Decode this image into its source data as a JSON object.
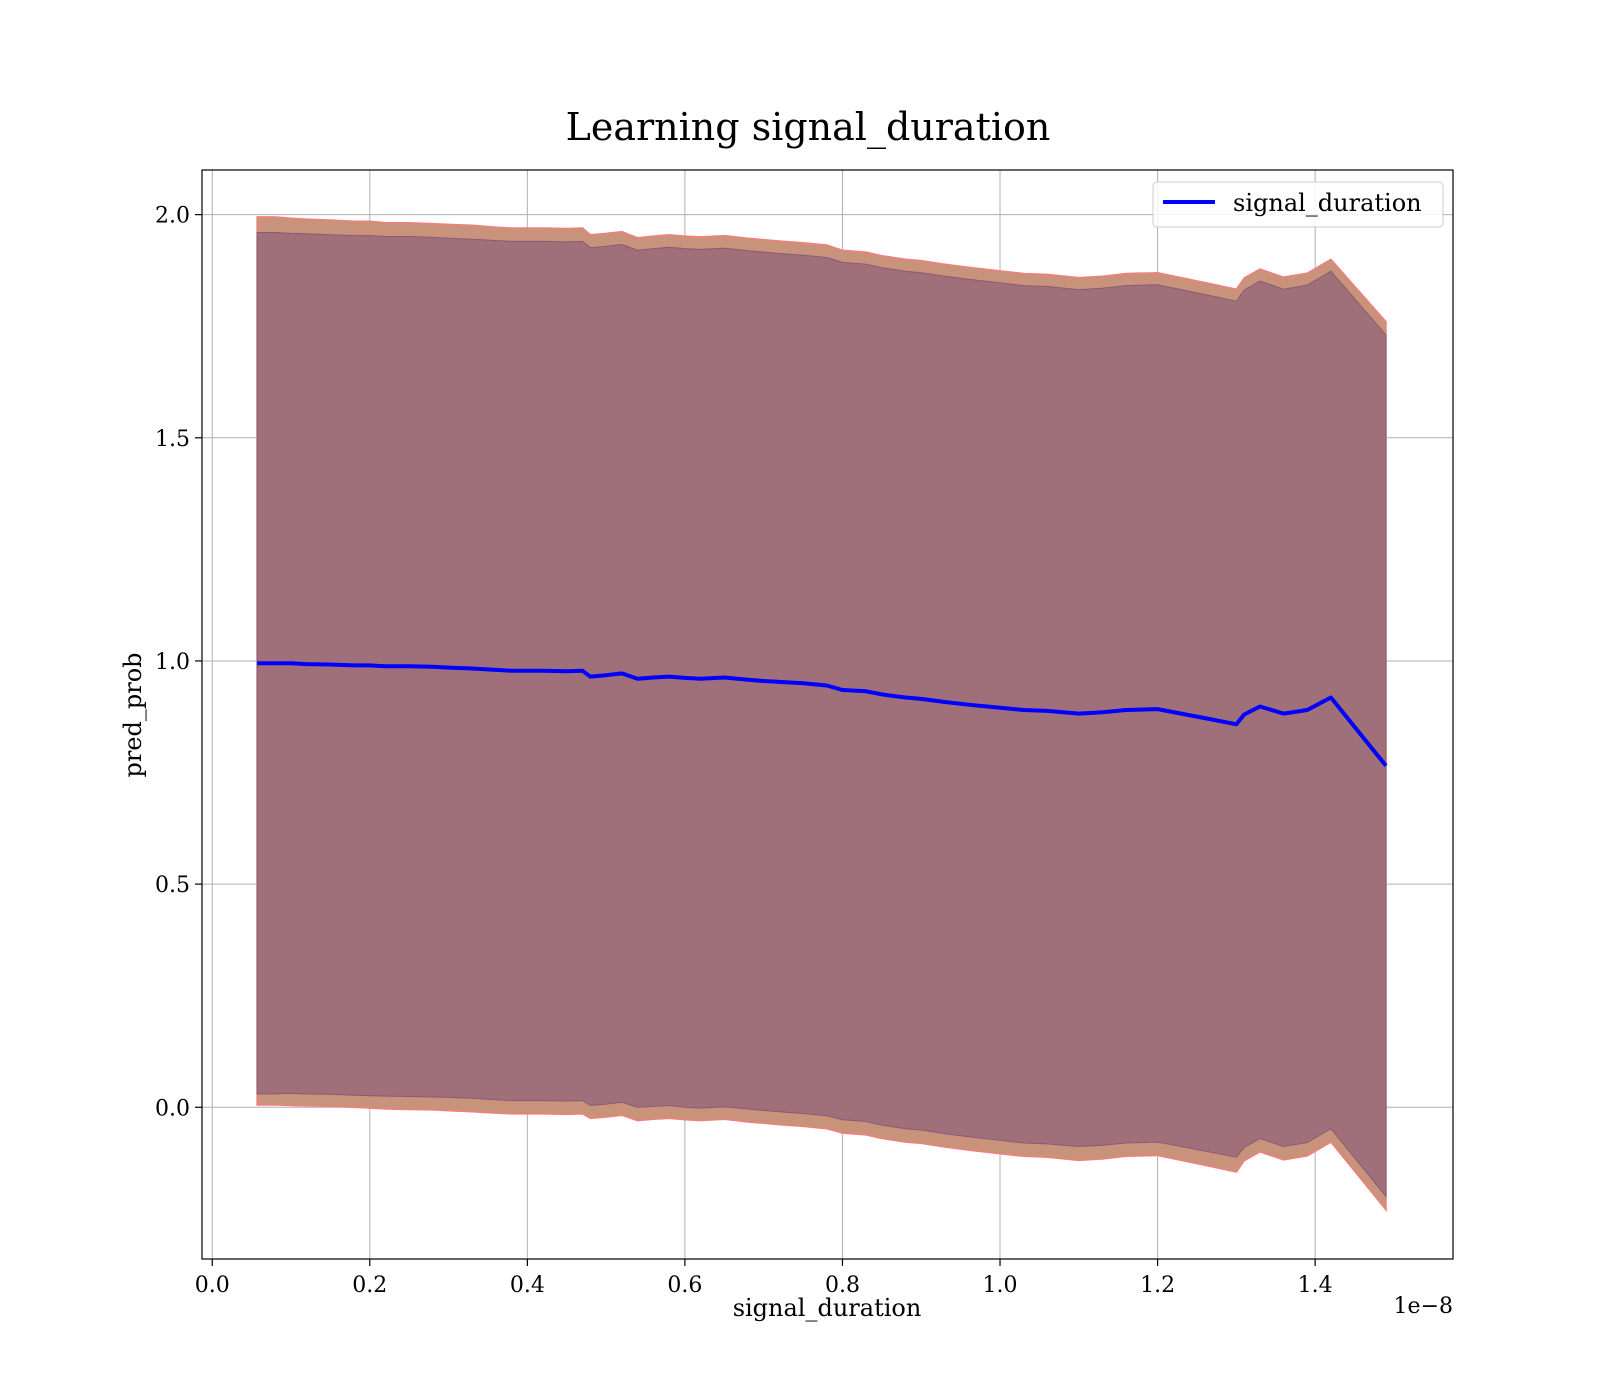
{
  "chart_data": {
    "type": "line",
    "title": "Learning signal_duration",
    "xlabel": "signal_duration",
    "ylabel": "pred_prob",
    "x_offset_label": "1e−8",
    "xlim": [
      -0.013,
      1.575
    ],
    "ylim": [
      -0.34,
      2.1
    ],
    "x_ticks": [
      0.0,
      0.2,
      0.4,
      0.6,
      0.8,
      1.0,
      1.2,
      1.4
    ],
    "x_tick_labels": [
      "0.0",
      "0.2",
      "0.4",
      "0.6",
      "0.8",
      "1.0",
      "1.2",
      "1.4"
    ],
    "y_ticks": [
      0.0,
      0.5,
      1.0,
      1.5,
      2.0
    ],
    "y_tick_labels": [
      "0.0",
      "0.5",
      "1.0",
      "1.5",
      "2.0"
    ],
    "grid": true,
    "legend_position": "top-right",
    "colors": {
      "line": "#0000ff",
      "band_outer": "#c8937a",
      "band_inner": "#a0707a",
      "band_edge_outer": "#f08080",
      "band_edge_inner": "#8a5a75"
    },
    "series": [
      {
        "name": "signal_duration",
        "x": [
          0.057,
          0.08,
          0.1,
          0.12,
          0.15,
          0.18,
          0.2,
          0.22,
          0.25,
          0.28,
          0.3,
          0.33,
          0.36,
          0.38,
          0.4,
          0.42,
          0.45,
          0.47,
          0.48,
          0.5,
          0.52,
          0.54,
          0.56,
          0.58,
          0.6,
          0.62,
          0.65,
          0.68,
          0.7,
          0.72,
          0.75,
          0.78,
          0.8,
          0.83,
          0.85,
          0.88,
          0.9,
          0.93,
          0.96,
          1.0,
          1.03,
          1.06,
          1.1,
          1.13,
          1.16,
          1.2,
          1.23,
          1.26,
          1.3,
          1.31,
          1.33,
          1.36,
          1.39,
          1.42,
          1.49
        ],
        "y": [
          0.995,
          0.995,
          0.995,
          0.993,
          0.992,
          0.99,
          0.99,
          0.988,
          0.988,
          0.987,
          0.985,
          0.983,
          0.98,
          0.978,
          0.978,
          0.978,
          0.977,
          0.978,
          0.965,
          0.968,
          0.972,
          0.96,
          0.963,
          0.965,
          0.962,
          0.96,
          0.963,
          0.958,
          0.955,
          0.953,
          0.95,
          0.945,
          0.935,
          0.932,
          0.925,
          0.918,
          0.915,
          0.908,
          0.902,
          0.895,
          0.89,
          0.888,
          0.882,
          0.885,
          0.89,
          0.892,
          0.882,
          0.872,
          0.858,
          0.88,
          0.898,
          0.882,
          0.89,
          0.918,
          0.765
        ]
      }
    ],
    "bands": {
      "outer_upper": [
        1.995,
        1.995,
        1.992,
        1.99,
        1.988,
        1.985,
        1.985,
        1.982,
        1.982,
        1.98,
        1.978,
        1.976,
        1.972,
        1.97,
        1.97,
        1.97,
        1.969,
        1.97,
        1.955,
        1.958,
        1.962,
        1.948,
        1.952,
        1.955,
        1.952,
        1.95,
        1.953,
        1.947,
        1.944,
        1.941,
        1.937,
        1.932,
        1.92,
        1.916,
        1.908,
        1.9,
        1.897,
        1.889,
        1.882,
        1.874,
        1.868,
        1.866,
        1.859,
        1.862,
        1.868,
        1.87,
        1.859,
        1.848,
        1.833,
        1.858,
        1.878,
        1.86,
        1.869,
        1.9,
        1.76
      ],
      "outer_lower": [
        0.005,
        0.005,
        0.004,
        0.003,
        0.002,
        0.0,
        -0.002,
        -0.004,
        -0.005,
        -0.006,
        -0.008,
        -0.01,
        -0.013,
        -0.015,
        -0.015,
        -0.015,
        -0.016,
        -0.015,
        -0.025,
        -0.022,
        -0.018,
        -0.03,
        -0.027,
        -0.025,
        -0.028,
        -0.03,
        -0.027,
        -0.033,
        -0.036,
        -0.039,
        -0.043,
        -0.048,
        -0.058,
        -0.062,
        -0.07,
        -0.078,
        -0.081,
        -0.089,
        -0.096,
        -0.104,
        -0.11,
        -0.112,
        -0.119,
        -0.116,
        -0.11,
        -0.108,
        -0.119,
        -0.13,
        -0.145,
        -0.12,
        -0.1,
        -0.118,
        -0.109,
        -0.078,
        -0.23
      ],
      "inner_upper": [
        1.96,
        1.96,
        1.958,
        1.957,
        1.955,
        1.953,
        1.953,
        1.951,
        1.951,
        1.949,
        1.947,
        1.945,
        1.942,
        1.94,
        1.94,
        1.94,
        1.939,
        1.94,
        1.926,
        1.929,
        1.933,
        1.92,
        1.924,
        1.927,
        1.924,
        1.922,
        1.925,
        1.919,
        1.916,
        1.913,
        1.909,
        1.904,
        1.893,
        1.889,
        1.881,
        1.873,
        1.87,
        1.862,
        1.855,
        1.847,
        1.841,
        1.839,
        1.832,
        1.835,
        1.841,
        1.843,
        1.832,
        1.821,
        1.806,
        1.831,
        1.851,
        1.833,
        1.842,
        1.873,
        1.73
      ],
      "inner_lower": [
        0.03,
        0.03,
        0.031,
        0.03,
        0.029,
        0.027,
        0.026,
        0.025,
        0.024,
        0.023,
        0.022,
        0.02,
        0.017,
        0.015,
        0.015,
        0.015,
        0.014,
        0.015,
        0.004,
        0.007,
        0.011,
        -0.0,
        0.002,
        0.004,
        0.0,
        -0.002,
        0.001,
        -0.004,
        -0.007,
        -0.01,
        -0.014,
        -0.019,
        -0.028,
        -0.032,
        -0.04,
        -0.048,
        -0.051,
        -0.059,
        -0.066,
        -0.074,
        -0.08,
        -0.082,
        -0.088,
        -0.085,
        -0.08,
        -0.078,
        -0.088,
        -0.098,
        -0.112,
        -0.09,
        -0.07,
        -0.088,
        -0.079,
        -0.048,
        -0.2
      ]
    }
  }
}
